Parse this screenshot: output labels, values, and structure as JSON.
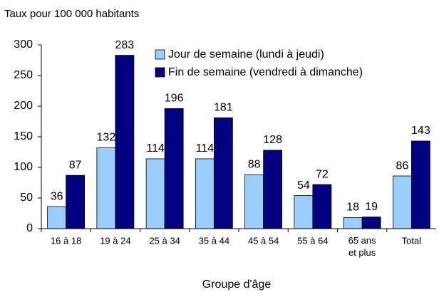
{
  "chart_data": {
    "type": "bar",
    "y_axis_label": "Taux pour 100 000 habitants",
    "x_axis_label": "Groupe d'âge",
    "categories": [
      "16 à 18",
      "19 à 24",
      "25 à 34",
      "35 à 44",
      "45 à 54",
      "55 à 64",
      "65 ans et plus",
      "Total"
    ],
    "series": [
      {
        "name": "Jour de semaine (lundi à jeudi)",
        "color": "#99ccff",
        "values": [
          36,
          132,
          114,
          114,
          88,
          54,
          18,
          86
        ]
      },
      {
        "name": "Fin de semaine (vendredi à dimanche)",
        "color": "#000080",
        "values": [
          87,
          283,
          196,
          181,
          128,
          72,
          19,
          143
        ]
      }
    ],
    "ylim": [
      0,
      300
    ],
    "yticks": [
      0,
      50,
      100,
      150,
      200,
      250,
      300
    ],
    "grid": false,
    "legend": "top"
  }
}
